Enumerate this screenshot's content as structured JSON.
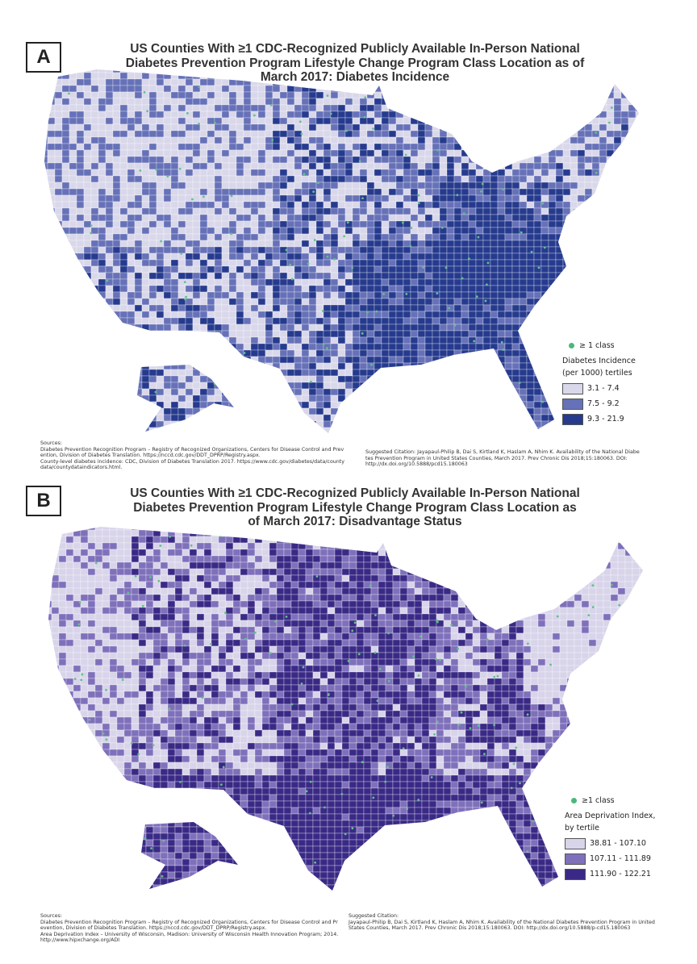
{
  "panels": [
    {
      "label": "A",
      "title_lines": [
        "US Counties With ≥1 CDC-Recognized Publicly Available In-Person National",
        "Diabetes Prevention Program Lifestyle Change Program Class Location as of",
        "March 2017: Diabetes Incidence"
      ],
      "legend": {
        "marker": "≥ 1 class",
        "title_lines": [
          "Diabetes Incidence",
          "(per 1000) tertiles"
        ],
        "entries": [
          "3.1 - 7.4",
          "7.5 - 9.2",
          "9.3 - 21.9"
        ]
      },
      "sources": [
        "Sources:",
        "Diabetes Prevention Recognition Program – Registry of Recognized Organizations, Centers for Disease Control and Prevention, Division of Diabetes Translation. https://nccd.cdc.gov/DDT_DPRP/Registry.aspx.",
        "County-level diabetes incidence: CDC, Division of Diabetes Translation 2017. https://www.cdc.gov/diabetes/data/countydata/countydataindicators.html."
      ],
      "citation": [
        "Suggested Citation: Jayapaul-Philip B, Dai S, Kirtland K, Haslam A, Nhim K. Availability of the National Diabetes Prevention Program in United States Counties, March 2017. Prev Chronic Dis 2018;15:180063. DOI:",
        "http://dx.doi.org/10.5888/pcd15.180063"
      ]
    },
    {
      "label": "B",
      "title_lines": [
        "US Counties With ≥1 CDC-Recognized Publicly Available In-Person National",
        "Diabetes Prevention Program Lifestyle Change Program Class Location as",
        "of March 2017: Disadvantage Status"
      ],
      "legend": {
        "marker": "≥1 class",
        "title_lines": [
          "Area Deprivation Index,",
          "by tertile"
        ],
        "entries": [
          "38.81 - 107.10",
          "107.11 - 111.89",
          "111.90 - 122.21"
        ]
      },
      "sources": [
        "Sources:",
        "Diabetes Prevention Recognition Program – Registry of Recognized Organizations, Centers for Disease Control and Prevention, Division of Diabetes Translation. https://nccd.cdc.gov/DDT_DPRP/Registry.aspx.",
        "Area Deprivation Index – University of Wisconsin, Madison: University of Wisconsin Health Innovation Program; 2014. http://www.hipxchange.org/ADI"
      ],
      "citation": [
        "Suggested Citation:",
        "Jayapaul-Philip B, Dai S, Kirtland K, Haslam A, Nhim K. Availability of the National Diabetes Prevention Program in United States Counties, March 2017. Prev Chronic Dis 2018;15:180063. DOI: http://dx.doi.org/10.5888/p-cd15.180063"
      ]
    }
  ]
}
